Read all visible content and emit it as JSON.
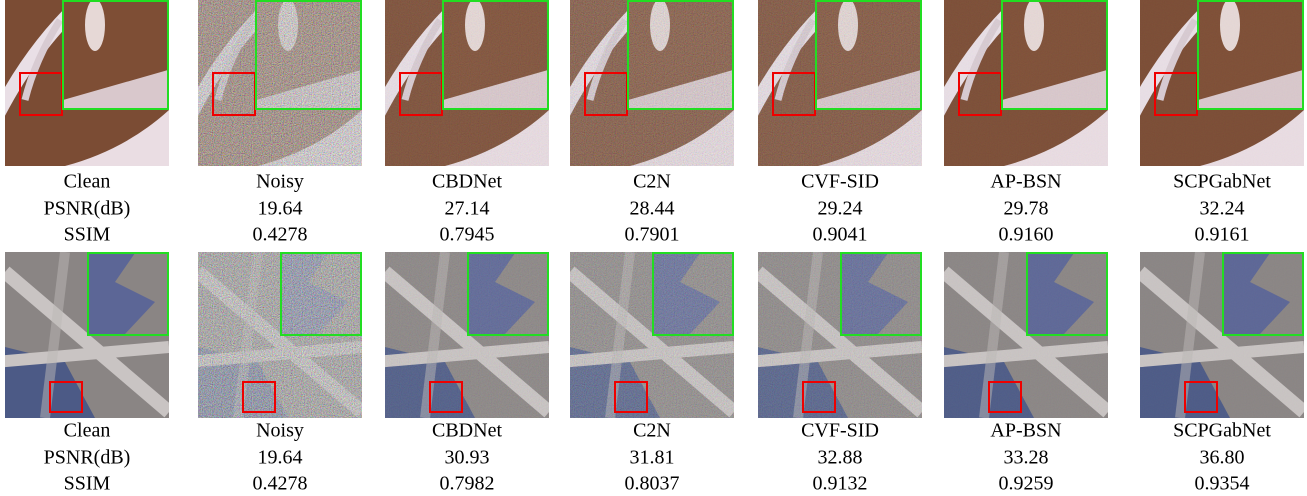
{
  "rows": [
    {
      "columns": [
        {
          "name": "Clean",
          "psnr": "PSNR(dB)",
          "ssim": "SSIM"
        },
        {
          "name": "Noisy",
          "psnr": "19.64",
          "ssim": "0.4278"
        },
        {
          "name": "CBDNet",
          "psnr": "27.14",
          "ssim": "0.7945"
        },
        {
          "name": "C2N",
          "psnr": "28.44",
          "ssim": "0.7901"
        },
        {
          "name": "CVF-SID",
          "psnr": "29.24",
          "ssim": "0.9041"
        },
        {
          "name": "AP-BSN",
          "psnr": "29.78",
          "ssim": "0.9160"
        },
        {
          "name": "SCPGabNet",
          "psnr": "32.24",
          "ssim": "0.9161"
        }
      ]
    },
    {
      "columns": [
        {
          "name": "Clean",
          "psnr": "PSNR(dB)",
          "ssim": "SSIM"
        },
        {
          "name": "Noisy",
          "psnr": "19.64",
          "ssim": "0.4278"
        },
        {
          "name": "CBDNet",
          "psnr": "30.93",
          "ssim": "0.7982"
        },
        {
          "name": "C2N",
          "psnr": "31.81",
          "ssim": "0.8037"
        },
        {
          "name": "CVF-SID",
          "psnr": "32.88",
          "ssim": "0.9132"
        },
        {
          "name": "AP-BSN",
          "psnr": "33.28",
          "ssim": "0.9259"
        },
        {
          "name": "SCPGabNet",
          "psnr": "36.80",
          "ssim": "0.9354"
        }
      ]
    }
  ]
}
